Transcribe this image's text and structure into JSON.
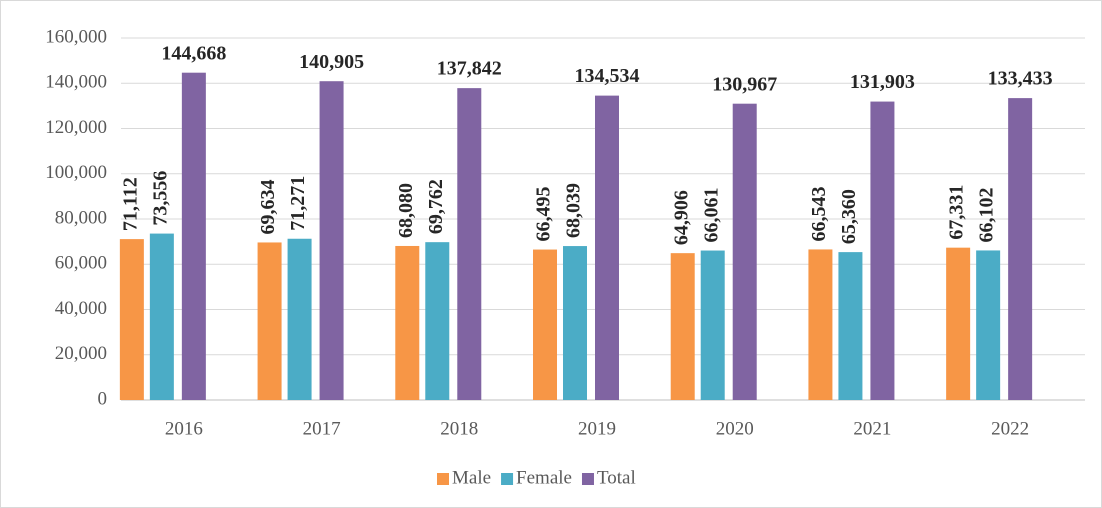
{
  "chart_data": {
    "type": "bar",
    "categories": [
      "2016",
      "2017",
      "2018",
      "2019",
      "2020",
      "2021",
      "2022"
    ],
    "series": [
      {
        "name": "Male",
        "color": "#f79646",
        "values": [
          71112,
          69634,
          68080,
          66495,
          64906,
          66543,
          67331
        ],
        "value_labels": [
          "71,112",
          "69,634",
          "68,080",
          "66,495",
          "64,906",
          "66,543",
          "67,331"
        ]
      },
      {
        "name": "Female",
        "color": "#4bacc6",
        "values": [
          73556,
          71271,
          69762,
          68039,
          66061,
          65360,
          66102
        ],
        "value_labels": [
          "73,556",
          "71,271",
          "69,762",
          "68,039",
          "66,061",
          "65,360",
          "66,102"
        ]
      },
      {
        "name": "Total",
        "color": "#8064a2",
        "values": [
          144668,
          140905,
          137842,
          134534,
          130967,
          131903,
          133433
        ],
        "value_labels": [
          "144,668",
          "140,905",
          "137,842",
          "134,534",
          "130,967",
          "131,903",
          "133,433"
        ]
      }
    ],
    "ylim": [
      0,
      160000
    ],
    "yticks": [
      0,
      {
        "value": 20000,
        "label": "20,000"
      },
      {
        "value": 40000,
        "label": "40,000"
      },
      {
        "value": 60000,
        "label": "60,000"
      },
      {
        "value": 80000,
        "label": "80,000"
      },
      {
        "value": 100000,
        "label": "100,000"
      },
      {
        "value": 120000,
        "label": "120,000"
      },
      {
        "value": 140000,
        "label": "140,000"
      },
      {
        "value": 160000,
        "label": "160,000"
      }
    ],
    "grid": true,
    "legend": "bottom"
  }
}
